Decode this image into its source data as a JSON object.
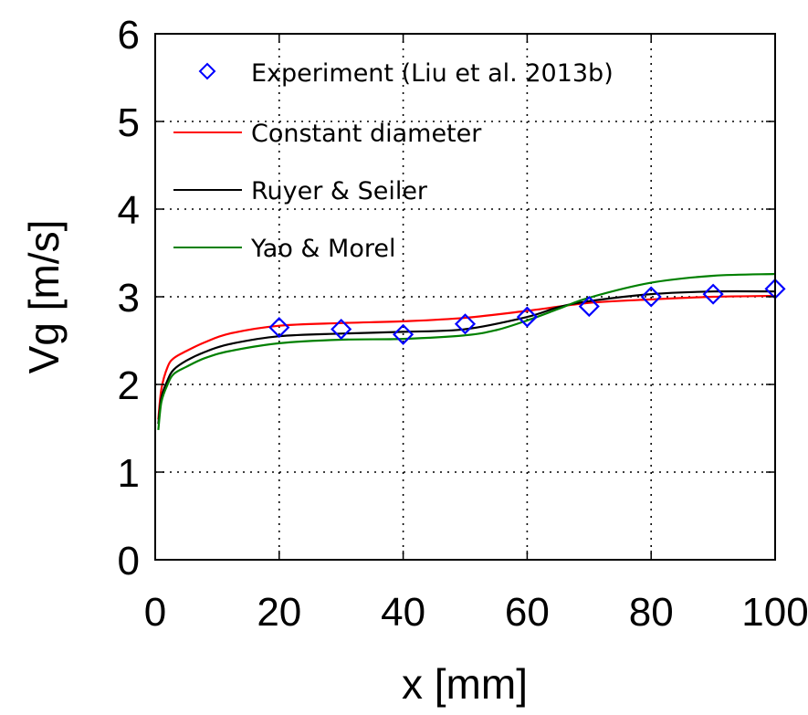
{
  "chart_data": {
    "type": "line",
    "xlabel": "x [mm]",
    "ylabel": "Vg [m/s]",
    "xlim": [
      0,
      100
    ],
    "ylim": [
      0,
      6
    ],
    "x_ticks": [
      "0",
      "20",
      "40",
      "60",
      "80",
      "100"
    ],
    "y_ticks": [
      "0",
      "1",
      "2",
      "3",
      "4",
      "5",
      "6"
    ],
    "grid": true,
    "legend_placement": "top-left",
    "series": [
      {
        "name": "Experiment (Liu et al. 2013b)",
        "kind": "scatter",
        "marker": "diamond",
        "color": "#0000ff",
        "x": [
          20,
          30,
          40,
          50,
          60,
          70,
          80,
          90,
          100
        ],
        "y": [
          2.65,
          2.63,
          2.57,
          2.69,
          2.77,
          2.89,
          3.0,
          3.03,
          3.09
        ]
      },
      {
        "name": "Constant diameter",
        "kind": "line",
        "color": "#ff0000",
        "x": [
          0.5,
          1,
          2,
          3,
          5,
          8,
          12,
          20,
          30,
          40,
          50,
          60,
          70,
          80,
          90,
          100
        ],
        "y": [
          1.6,
          1.95,
          2.2,
          2.3,
          2.38,
          2.48,
          2.58,
          2.67,
          2.7,
          2.72,
          2.76,
          2.84,
          2.93,
          2.97,
          3.0,
          3.01
        ]
      },
      {
        "name": "Ruyer & Seiler",
        "kind": "line",
        "color": "#000000",
        "x": [
          0.5,
          1,
          2,
          3,
          5,
          8,
          12,
          20,
          30,
          40,
          50,
          60,
          65,
          70,
          80,
          90,
          100
        ],
        "y": [
          1.55,
          1.85,
          2.05,
          2.17,
          2.27,
          2.37,
          2.46,
          2.55,
          2.58,
          2.6,
          2.63,
          2.77,
          2.88,
          2.95,
          3.03,
          3.06,
          3.06
        ]
      },
      {
        "name": "Yao & Morel",
        "kind": "line",
        "color": "#008000",
        "x": [
          0.5,
          1,
          2,
          3,
          5,
          8,
          12,
          20,
          30,
          40,
          50,
          55,
          60,
          65,
          70,
          80,
          90,
          100
        ],
        "y": [
          1.48,
          1.8,
          2.0,
          2.12,
          2.2,
          2.3,
          2.38,
          2.47,
          2.51,
          2.52,
          2.56,
          2.62,
          2.73,
          2.86,
          2.99,
          3.16,
          3.24,
          3.26
        ]
      }
    ]
  }
}
